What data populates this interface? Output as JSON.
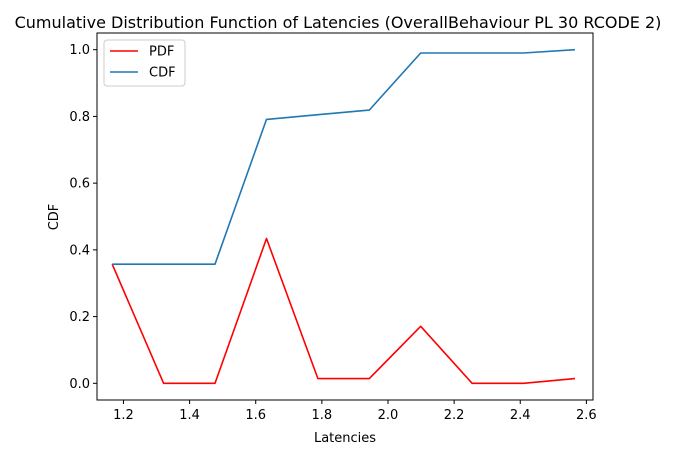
{
  "chart_data": {
    "type": "line",
    "title": "Cumulative Distribution Function of Latencies (OverallBehaviour PL 30 RCODE 2)",
    "xlabel": "Latencies",
    "ylabel": "CDF",
    "xlim": [
      1.12,
      2.62
    ],
    "ylim": [
      -0.05,
      1.05
    ],
    "xticks": [
      1.2,
      1.4,
      1.6,
      1.8,
      2.0,
      2.2,
      2.4,
      2.6
    ],
    "xtick_labels": [
      "1.2",
      "1.4",
      "1.6",
      "1.8",
      "2.0",
      "2.2",
      "2.4",
      "2.6"
    ],
    "yticks": [
      0.0,
      0.2,
      0.4,
      0.6,
      0.8,
      1.0
    ],
    "ytick_labels": [
      "0.0",
      "0.2",
      "0.4",
      "0.6",
      "0.8",
      "1.0"
    ],
    "grid": false,
    "legend_position": "top-left",
    "x": [
      1.166,
      1.3215,
      1.477,
      1.6325,
      1.788,
      1.9435,
      2.099,
      2.2545,
      2.41,
      2.5655
    ],
    "series": [
      {
        "name": "PDF",
        "color": "#ff0000",
        "values": [
          0.357,
          0.0,
          0.0,
          0.434,
          0.014,
          0.014,
          0.171,
          0.0,
          0.0,
          0.014
        ]
      },
      {
        "name": "CDF",
        "color": "#1f77b4",
        "values": [
          0.357,
          0.357,
          0.357,
          0.791,
          0.805,
          0.819,
          0.99,
          0.99,
          0.99,
          1.0
        ]
      }
    ]
  }
}
